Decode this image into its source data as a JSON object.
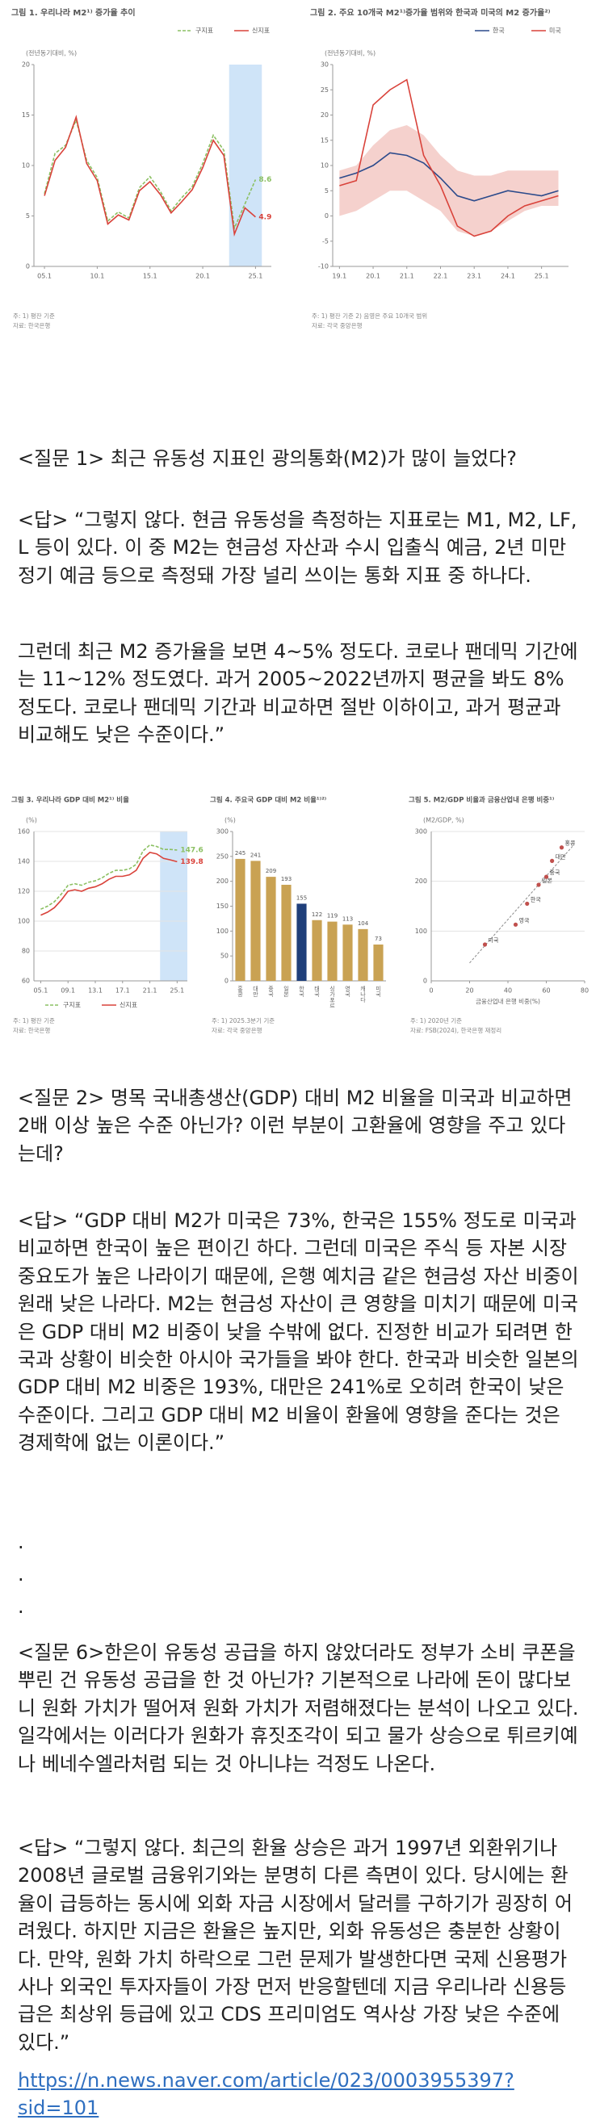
{
  "figures": [
    {
      "type": "line",
      "title": "그림 1. 우리나라 M2¹⁾ 증가율 추이",
      "unit": "(전년동기대비, %)",
      "legend": "top-right",
      "xlim": [
        2004,
        2026.5
      ],
      "ylim": [
        0,
        20
      ],
      "yticks": [
        0,
        5,
        10,
        15,
        20
      ],
      "grid": false,
      "xticks": [
        {
          "value": 2005,
          "label": "05.1"
        },
        {
          "value": 2010,
          "label": "10.1"
        },
        {
          "value": 2015,
          "label": "15.1"
        },
        {
          "value": 2020,
          "label": "20.1"
        },
        {
          "value": 2025,
          "label": "25.1"
        }
      ],
      "shade": [
        2022.5,
        2025.6
      ],
      "series": [
        {
          "name": "구지표",
          "color": "#8cc063",
          "dash": true,
          "end_label": "8.6",
          "x": [
            2005,
            2006,
            2007,
            2008,
            2009,
            2010,
            2011,
            2012,
            2013,
            2014,
            2015,
            2016,
            2017,
            2018,
            2019,
            2020,
            2021,
            2022,
            2023,
            2024,
            2025
          ],
          "values": [
            7.2,
            11.2,
            12.0,
            14.5,
            10.5,
            8.8,
            4.5,
            5.4,
            4.8,
            7.8,
            8.9,
            7.4,
            5.5,
            6.8,
            7.9,
            10.2,
            13.0,
            11.5,
            3.8,
            6.2,
            8.6
          ]
        },
        {
          "name": "신지표",
          "color": "#d9423a",
          "dash": false,
          "end_label": "4.9",
          "x": [
            2005,
            2006,
            2007,
            2008,
            2009,
            2010,
            2011,
            2012,
            2013,
            2014,
            2015,
            2016,
            2017,
            2018,
            2019,
            2020,
            2021,
            2022,
            2023,
            2024,
            2025
          ],
          "values": [
            7.0,
            10.5,
            11.8,
            14.8,
            10.2,
            8.5,
            4.2,
            5.1,
            4.6,
            7.5,
            8.4,
            7.1,
            5.3,
            6.4,
            7.6,
            9.8,
            12.5,
            11.0,
            3.2,
            5.8,
            4.9
          ]
        }
      ],
      "notes": [
        "주: 1) 평잔 기준",
        "자료: 한국은행"
      ]
    },
    {
      "type": "line",
      "title": "그림 2. 주요 10개국 M2¹⁾증가율 범위와 한국과 미국의 M2 증가율²⁾",
      "unit": "(전년동기대비, %)",
      "legend": "top-right",
      "xlim": [
        2018.8,
        2025.8
      ],
      "ylim": [
        -10,
        30
      ],
      "yticks": [
        -10,
        -5,
        0,
        5,
        10,
        15,
        20,
        25,
        30
      ],
      "grid": false,
      "xticks": [
        {
          "value": 2019,
          "label": "19.1"
        },
        {
          "value": 2020,
          "label": "20.1"
        },
        {
          "value": 2021,
          "label": "21.1"
        },
        {
          "value": 2022,
          "label": "22.1"
        },
        {
          "value": 2023,
          "label": "23.1"
        },
        {
          "value": 2024,
          "label": "24.1"
        },
        {
          "value": 2025,
          "label": "25.1"
        }
      ],
      "range": {
        "color": "#f3c9c4",
        "x": [
          2019,
          2019.5,
          2020,
          2020.5,
          2021,
          2021.5,
          2022,
          2022.5,
          2023,
          2023.5,
          2024,
          2024.5,
          2025,
          2025.5
        ],
        "low": [
          0,
          1,
          3,
          5,
          5,
          3,
          1,
          -3,
          -4,
          -3,
          -1,
          1,
          2,
          2
        ],
        "high": [
          9,
          10,
          14,
          17,
          18,
          16,
          12,
          9,
          8,
          8,
          9,
          9,
          9,
          9
        ]
      },
      "series": [
        {
          "name": "한국",
          "color": "#2b4a8b",
          "dash": false,
          "x": [
            2019,
            2019.5,
            2020,
            2020.5,
            2021,
            2021.5,
            2022,
            2022.5,
            2023,
            2023.5,
            2024,
            2024.5,
            2025,
            2025.5
          ],
          "values": [
            7.5,
            8.5,
            10.0,
            12.5,
            12.0,
            10.5,
            7.5,
            4.0,
            3.0,
            4.0,
            5.0,
            4.5,
            4.0,
            5.0
          ]
        },
        {
          "name": "미국",
          "color": "#d9423a",
          "dash": false,
          "x": [
            2019,
            2019.5,
            2020,
            2020.5,
            2021,
            2021.5,
            2022,
            2022.5,
            2023,
            2023.5,
            2024,
            2024.5,
            2025,
            2025.5
          ],
          "values": [
            6.0,
            7.0,
            22.0,
            25.0,
            27.0,
            12.0,
            6.0,
            -2.0,
            -4.0,
            -3.0,
            0.0,
            2.0,
            3.0,
            4.0
          ]
        }
      ],
      "notes": [
        "주: 1) 평잔 기준 2) 음영은 주요 10개국 범위",
        "자료: 각국 중앙은행"
      ]
    },
    {
      "type": "line",
      "title": "그림 3. 우리나라 GDP 대비 M2¹⁾ 비율",
      "unit": "(%)",
      "legend": "bottom",
      "xlim": [
        2004,
        2026.5
      ],
      "ylim": [
        60,
        160
      ],
      "yticks": [
        60,
        80,
        100,
        120,
        140,
        160
      ],
      "grid": true,
      "xticks": [
        {
          "value": 2005,
          "label": "05.1"
        },
        {
          "value": 2009,
          "label": "09.1"
        },
        {
          "value": 2013,
          "label": "13.1"
        },
        {
          "value": 2017,
          "label": "17.1"
        },
        {
          "value": 2021,
          "label": "21.1"
        },
        {
          "value": 2025,
          "label": "25.1"
        }
      ],
      "shade": [
        2022.5,
        2026.5
      ],
      "series": [
        {
          "name": "구지표",
          "color": "#8cc063",
          "dash": true,
          "end_label": "147.6",
          "x": [
            2005,
            2006,
            2007,
            2008,
            2009,
            2010,
            2011,
            2012,
            2013,
            2014,
            2015,
            2016,
            2017,
            2018,
            2019,
            2020,
            2021,
            2022,
            2023,
            2024,
            2025
          ],
          "values": [
            108,
            110,
            113,
            118,
            124,
            125,
            124,
            126,
            127,
            129,
            132,
            134,
            134,
            135,
            138,
            147,
            151,
            150,
            148,
            148,
            147.6
          ]
        },
        {
          "name": "신지표",
          "color": "#d9423a",
          "dash": false,
          "end_label": "139.8",
          "x": [
            2005,
            2006,
            2007,
            2008,
            2009,
            2010,
            2011,
            2012,
            2013,
            2014,
            2015,
            2016,
            2017,
            2018,
            2019,
            2020,
            2021,
            2022,
            2023,
            2024,
            2025
          ],
          "values": [
            104,
            106,
            109,
            114,
            120,
            121,
            120,
            122,
            123,
            125,
            128,
            130,
            130,
            131,
            134,
            142,
            146,
            145,
            142,
            141,
            139.8
          ]
        }
      ],
      "notes": [
        "주: 1) 평잔 기준",
        "자료: 한국은행"
      ]
    },
    {
      "type": "bar",
      "title": "그림 4. 주요국 GDP 대비 M2 비율¹⁾²⁾",
      "unit": "(%)",
      "ylim": [
        0,
        300
      ],
      "yticks": [
        0,
        50,
        100,
        150,
        200,
        250,
        300
      ],
      "grid": false,
      "categories": [
        "홍콩",
        "대만",
        "중국",
        "일본",
        "한국",
        "태국",
        "싱가포르",
        "영국",
        "캐나다",
        "미국"
      ],
      "values": [
        245,
        241,
        209,
        193,
        155,
        122,
        119,
        113,
        104,
        73
      ],
      "colors": [
        "#c9a253",
        "#c9a253",
        "#c9a253",
        "#c9a253",
        "#1f3f7a",
        "#c9a253",
        "#c9a253",
        "#c9a253",
        "#c9a253",
        "#c9a253"
      ],
      "notes": [
        "주: 1) 2025.3분기 기준",
        "자료: 각국 중앙은행"
      ]
    },
    {
      "type": "scatter",
      "title": "그림 5. M2/GDP 비율과 금융산업내 은행 비중¹⁾",
      "unit": "(M2/GDP, %)",
      "xlabel": "금융산업내 은행 비중(%)",
      "xlim": [
        0,
        80
      ],
      "ylim": [
        0,
        300
      ],
      "xticks": [
        0,
        20,
        40,
        60,
        80
      ],
      "yticks": [
        0,
        100,
        200,
        300
      ],
      "grid": true,
      "color": "#c0504d",
      "points": [
        {
          "label": "미국",
          "x": 28,
          "y": 73
        },
        {
          "label": "영국",
          "x": 44,
          "y": 113
        },
        {
          "label": "한국",
          "x": 50,
          "y": 155
        },
        {
          "label": "일본",
          "x": 56,
          "y": 193
        },
        {
          "label": "중국",
          "x": 60,
          "y": 209
        },
        {
          "label": "대만",
          "x": 63,
          "y": 241
        },
        {
          "label": "홍콩",
          "x": 68,
          "y": 268
        }
      ],
      "notes": [
        "주: 1) 2020년 기준",
        "자료: FSB(2024), 한국은행 재정리"
      ]
    }
  ],
  "paragraphs": [
    "<질문 1> 최근 유동성 지표인 광의통화(M2)가 많이 늘었다?",
    "<답> “그렇지 않다. 현금 유동성을 측정하는 지표로는 M1, M2, LF, L 등이 있다. 이 중 M2는 현금성 자산과 수시 입출식 예금, 2년 미만 정기 예금 등으로 측정돼 가장 널리 쓰이는 통화 지표 중 하나다.",
    "그런데 최근 M2 증가율을 보면 4~5% 정도다. 코로나 팬데믹 기간에는 11~12% 정도였다. 과거 2005~2022년까지 평균을 봐도 8% 정도다. 코로나 팬데믹 기간과 비교하면 절반 이하이고, 과거 평균과 비교해도 낮은 수준이다.”",
    "<질문 2> 명목 국내총생산(GDP) 대비 M2 비율을 미국과 비교하면 2배 이상 높은 수준 아닌가? 이런 부분이 고환율에 영향을 주고 있다는데?",
    "<답> “GDP 대비 M2가 미국은 73%, 한국은 155% 정도로 미국과 비교하면 한국이 높은 편이긴 하다. 그런데 미국은 주식 등 자본 시장 중요도가 높은 나라이기 때문에, 은행 예치금 같은 현금성 자산 비중이 원래 낮은 나라다. M2는 현금성 자산이 큰 영향을 미치기 때문에 미국은 GDP 대비 M2 비중이 낮을 수밖에 없다. 진정한 비교가 되려면 한국과 상황이 비슷한 아시아 국가들을 봐야 한다. 한국과 비슷한 일본의 GDP 대비 M2 비중은 193%, 대만은 241%로 오히려 한국이 낮은 수준이다. 그리고 GDP 대비 M2 비율이 환율에 영향을 준다는 것은 경제학에 없는 이론이다.”",
    ".",
    ".",
    ".",
    "<질문 6>한은이 유동성 공급을 하지 않았더라도 정부가 소비 쿠폰을 뿌린 건 유동성 공급을 한 것 아닌가? 기본적으로 나라에 돈이 많다보니 원화 가치가 떨어져 원화 가치가 저렴해졌다는 분석이 나오고 있다. 일각에서는 이러다가 원화가 휴짓조각이 되고 물가 상승으로 튀르키예나 베네수엘라처럼 되는 것 아니냐는 걱정도 나온다.",
    "<답> “그렇지 않다. 최근의 환율 상승은 과거 1997년 외환위기나 2008년 글로벌 금융위기와는 분명히 다른 측면이 있다. 당시에는 환율이 급등하는 동시에 외화 자금 시장에서 달러를 구하기가 굉장히 어려웠다. 하지만 지금은 환율은 높지만, 외화 유동성은 충분한 상황이다. 만약, 원화 가치 하락으로 그런 문제가 발생한다면 국제 신용평가사나 외국인 투자자들이 가장 먼저 반응할텐데 지금 우리나라 신용등급은 최상위 등급에 있고 CDS 프리미엄도 역사상 가장 낮은 수준에 있다.”"
  ],
  "link": "https://n.news.naver.com/article/023/0003955397?sid=101"
}
